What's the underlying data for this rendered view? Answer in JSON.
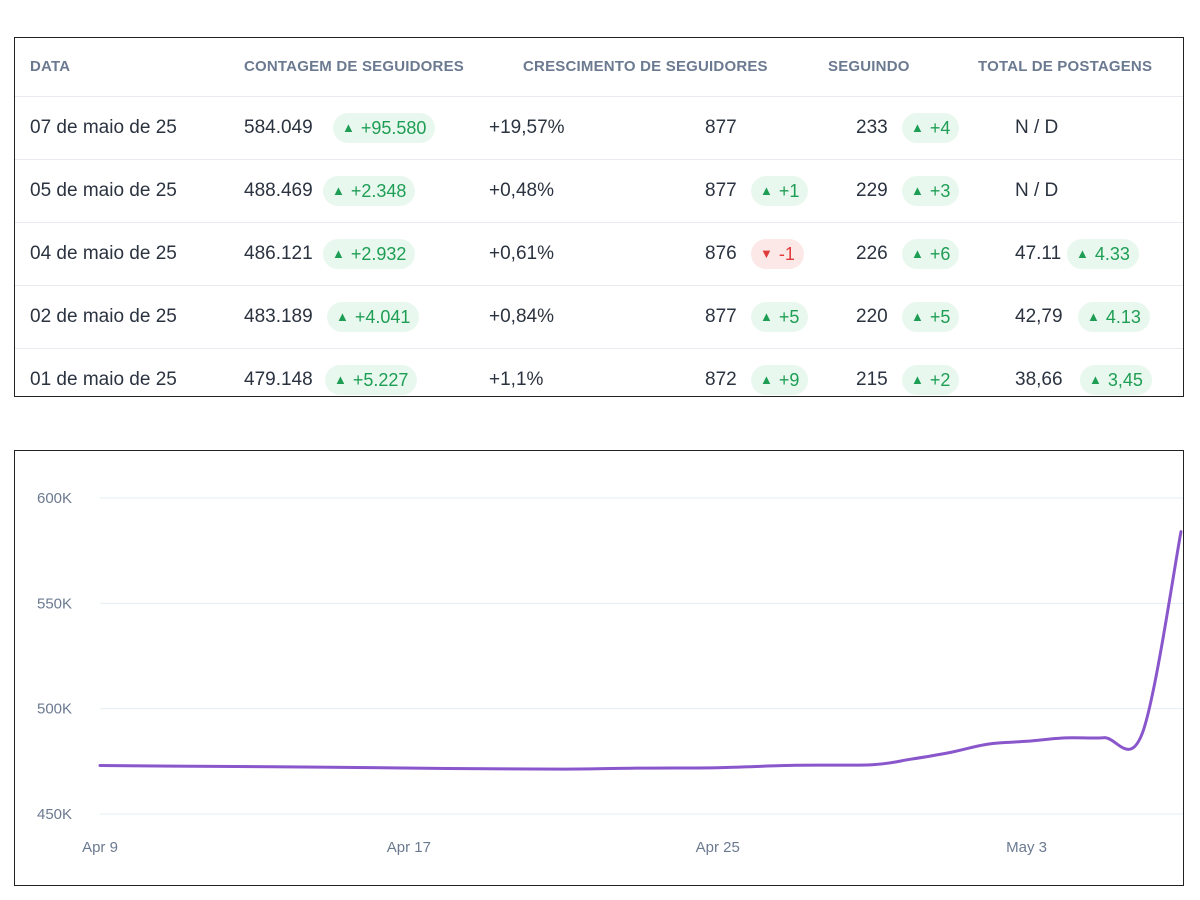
{
  "table": {
    "headers": [
      "DATA",
      "CONTAGEM DE SEGUIDORES",
      "CRESCIMENTO DE SEGUIDORES",
      "SEGUINDO",
      "TOTAL DE POSTAGENS"
    ],
    "rows": [
      {
        "date": "07 de maio de 25",
        "followers": "584.049",
        "followers_delta": "+95.580",
        "growth": "+19,57%",
        "following": "877",
        "following_delta": null,
        "following_dir": null,
        "col5": "233",
        "col5_delta": "+4",
        "posts": "N / D",
        "posts_delta": null
      },
      {
        "date": "05 de maio de 25",
        "followers": "488.469",
        "followers_delta": "+2.348",
        "growth": "+0,48%",
        "following": "877",
        "following_delta": "+1",
        "following_dir": "up",
        "col5": "229",
        "col5_delta": "+3",
        "posts": "N / D",
        "posts_delta": null
      },
      {
        "date": "04 de maio de 25",
        "followers": "486.121",
        "followers_delta": "+2.932",
        "growth": "+0,61%",
        "following": "876",
        "following_delta": "-1",
        "following_dir": "down",
        "col5": "226",
        "col5_delta": "+6",
        "posts": "47.11",
        "posts_delta": "4.33"
      },
      {
        "date": "02 de maio de 25",
        "followers": "483.189",
        "followers_delta": "+4.041",
        "growth": "+0,84%",
        "following": "877",
        "following_delta": "+5",
        "following_dir": "up",
        "col5": "220",
        "col5_delta": "+5",
        "posts": "42,79",
        "posts_delta": "4.13"
      },
      {
        "date": "01 de maio de 25",
        "followers": "479.148",
        "followers_delta": "+5.227",
        "growth": "+1,1%",
        "following": "872",
        "following_delta": "+9",
        "following_dir": "up",
        "col5": "215",
        "col5_delta": "+2",
        "posts": "38,66",
        "posts_delta": "3,45"
      }
    ]
  },
  "colors": {
    "up": "#1e9e55",
    "down": "#e03b3b",
    "line": "#8a56cc",
    "grid": "#e3eef2"
  },
  "chart_data": {
    "type": "line",
    "x_start": "2025-04-09",
    "x_end": "2025-05-07",
    "y_ticks": [
      450000,
      500000,
      550000,
      600000
    ],
    "y_tick_labels": [
      "450K",
      "500K",
      "550K",
      "600K"
    ],
    "ylim": [
      450000,
      600000
    ],
    "x_ticks": [
      "2025-04-09",
      "2025-04-17",
      "2025-04-25",
      "2025-05-03"
    ],
    "x_tick_labels": [
      "Apr 9",
      "Apr 17",
      "Apr 25",
      "May 3"
    ],
    "grid": true,
    "x": [
      "2025-04-09",
      "2025-04-12",
      "2025-04-15",
      "2025-04-18",
      "2025-04-21",
      "2025-04-23",
      "2025-04-25",
      "2025-04-27",
      "2025-04-29",
      "2025-04-30",
      "2025-05-01",
      "2025-05-02",
      "2025-05-03",
      "2025-05-04",
      "2025-05-05",
      "2025-05-06",
      "2025-05-07"
    ],
    "series": [
      {
        "values": [
          473000,
          472600,
          472200,
          471600,
          471300,
          471800,
          472000,
          473100,
          473400,
          476000,
          479148,
          483189,
          484500,
          486121,
          486200,
          488469,
          584049
        ]
      }
    ]
  }
}
